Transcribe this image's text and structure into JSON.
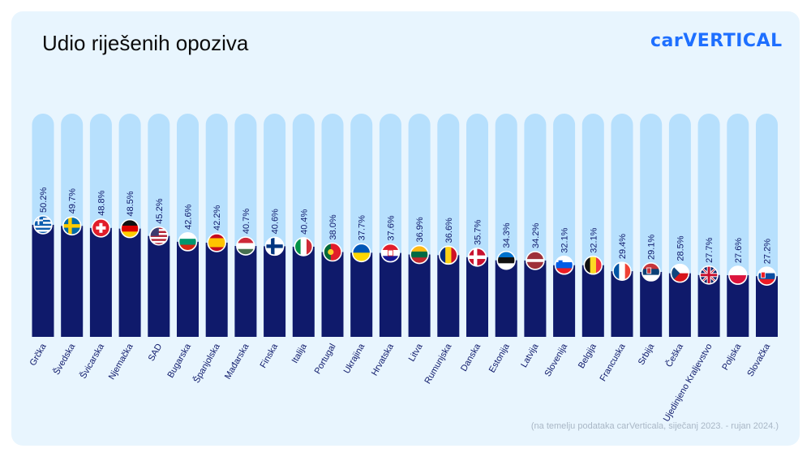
{
  "title": "Udio riješenih opoziva",
  "logo": "carVERTICAL",
  "source": "(na temelju podataka carVerticala, siječanj 2023. - rujan 2024.)",
  "colors": {
    "track": "#b7e0fd",
    "bar": "#0f1a6b",
    "label": "#0f1a6b",
    "brand": "#1e6fff"
  },
  "chart_data": {
    "type": "bar",
    "title": "Udio riješenih opoziva",
    "ylim": [
      0,
      100
    ],
    "value_suffix": "%",
    "categories": [
      "Grčka",
      "Švedska",
      "Švicarska",
      "Njemačka",
      "SAD",
      "Bugarska",
      "Španjolska",
      "Mađarska",
      "Finska",
      "Italija",
      "Portugal",
      "Ukrajina",
      "Hrvatska",
      "Litva",
      "Rumunjska",
      "Danska",
      "Estonija",
      "Latvija",
      "Slovenija",
      "Belgija",
      "Francuska",
      "Srbija",
      "Češka",
      "Ujedinjeno Kraljevstvo",
      "Poljska",
      "Slovačka"
    ],
    "values": [
      50.2,
      49.7,
      48.8,
      48.5,
      45.2,
      42.6,
      42.2,
      40.7,
      40.6,
      40.4,
      38.0,
      37.7,
      37.6,
      36.9,
      36.6,
      35.7,
      34.3,
      34.2,
      32.1,
      32.1,
      29.4,
      29.1,
      28.5,
      27.7,
      27.6,
      27.2
    ],
    "value_labels": [
      "50.2%",
      "49.7%",
      "48.8%",
      "48.5%",
      "45.2%",
      "42.6%",
      "42.2%",
      "40.7%",
      "40.6%",
      "40.4%",
      "38.0%",
      "37.7%",
      "37.6%",
      "36.9%",
      "36.6%",
      "35.7%",
      "34.3%",
      "34.2%",
      "32.1%",
      "32.1%",
      "29.4%",
      "29.1%",
      "28.5%",
      "27.7%",
      "27.6%",
      "27.2%"
    ],
    "flag_icons": [
      "flag-greece-icon",
      "flag-sweden-icon",
      "flag-switzerland-icon",
      "flag-germany-icon",
      "flag-usa-icon",
      "flag-bulgaria-icon",
      "flag-spain-icon",
      "flag-hungary-icon",
      "flag-finland-icon",
      "flag-italy-icon",
      "flag-portugal-icon",
      "flag-ukraine-icon",
      "flag-croatia-icon",
      "flag-lithuania-icon",
      "flag-romania-icon",
      "flag-denmark-icon",
      "flag-estonia-icon",
      "flag-latvia-icon",
      "flag-slovenia-icon",
      "flag-belgium-icon",
      "flag-france-icon",
      "flag-serbia-icon",
      "flag-czechia-icon",
      "flag-uk-icon",
      "flag-poland-icon",
      "flag-slovakia-icon"
    ]
  }
}
